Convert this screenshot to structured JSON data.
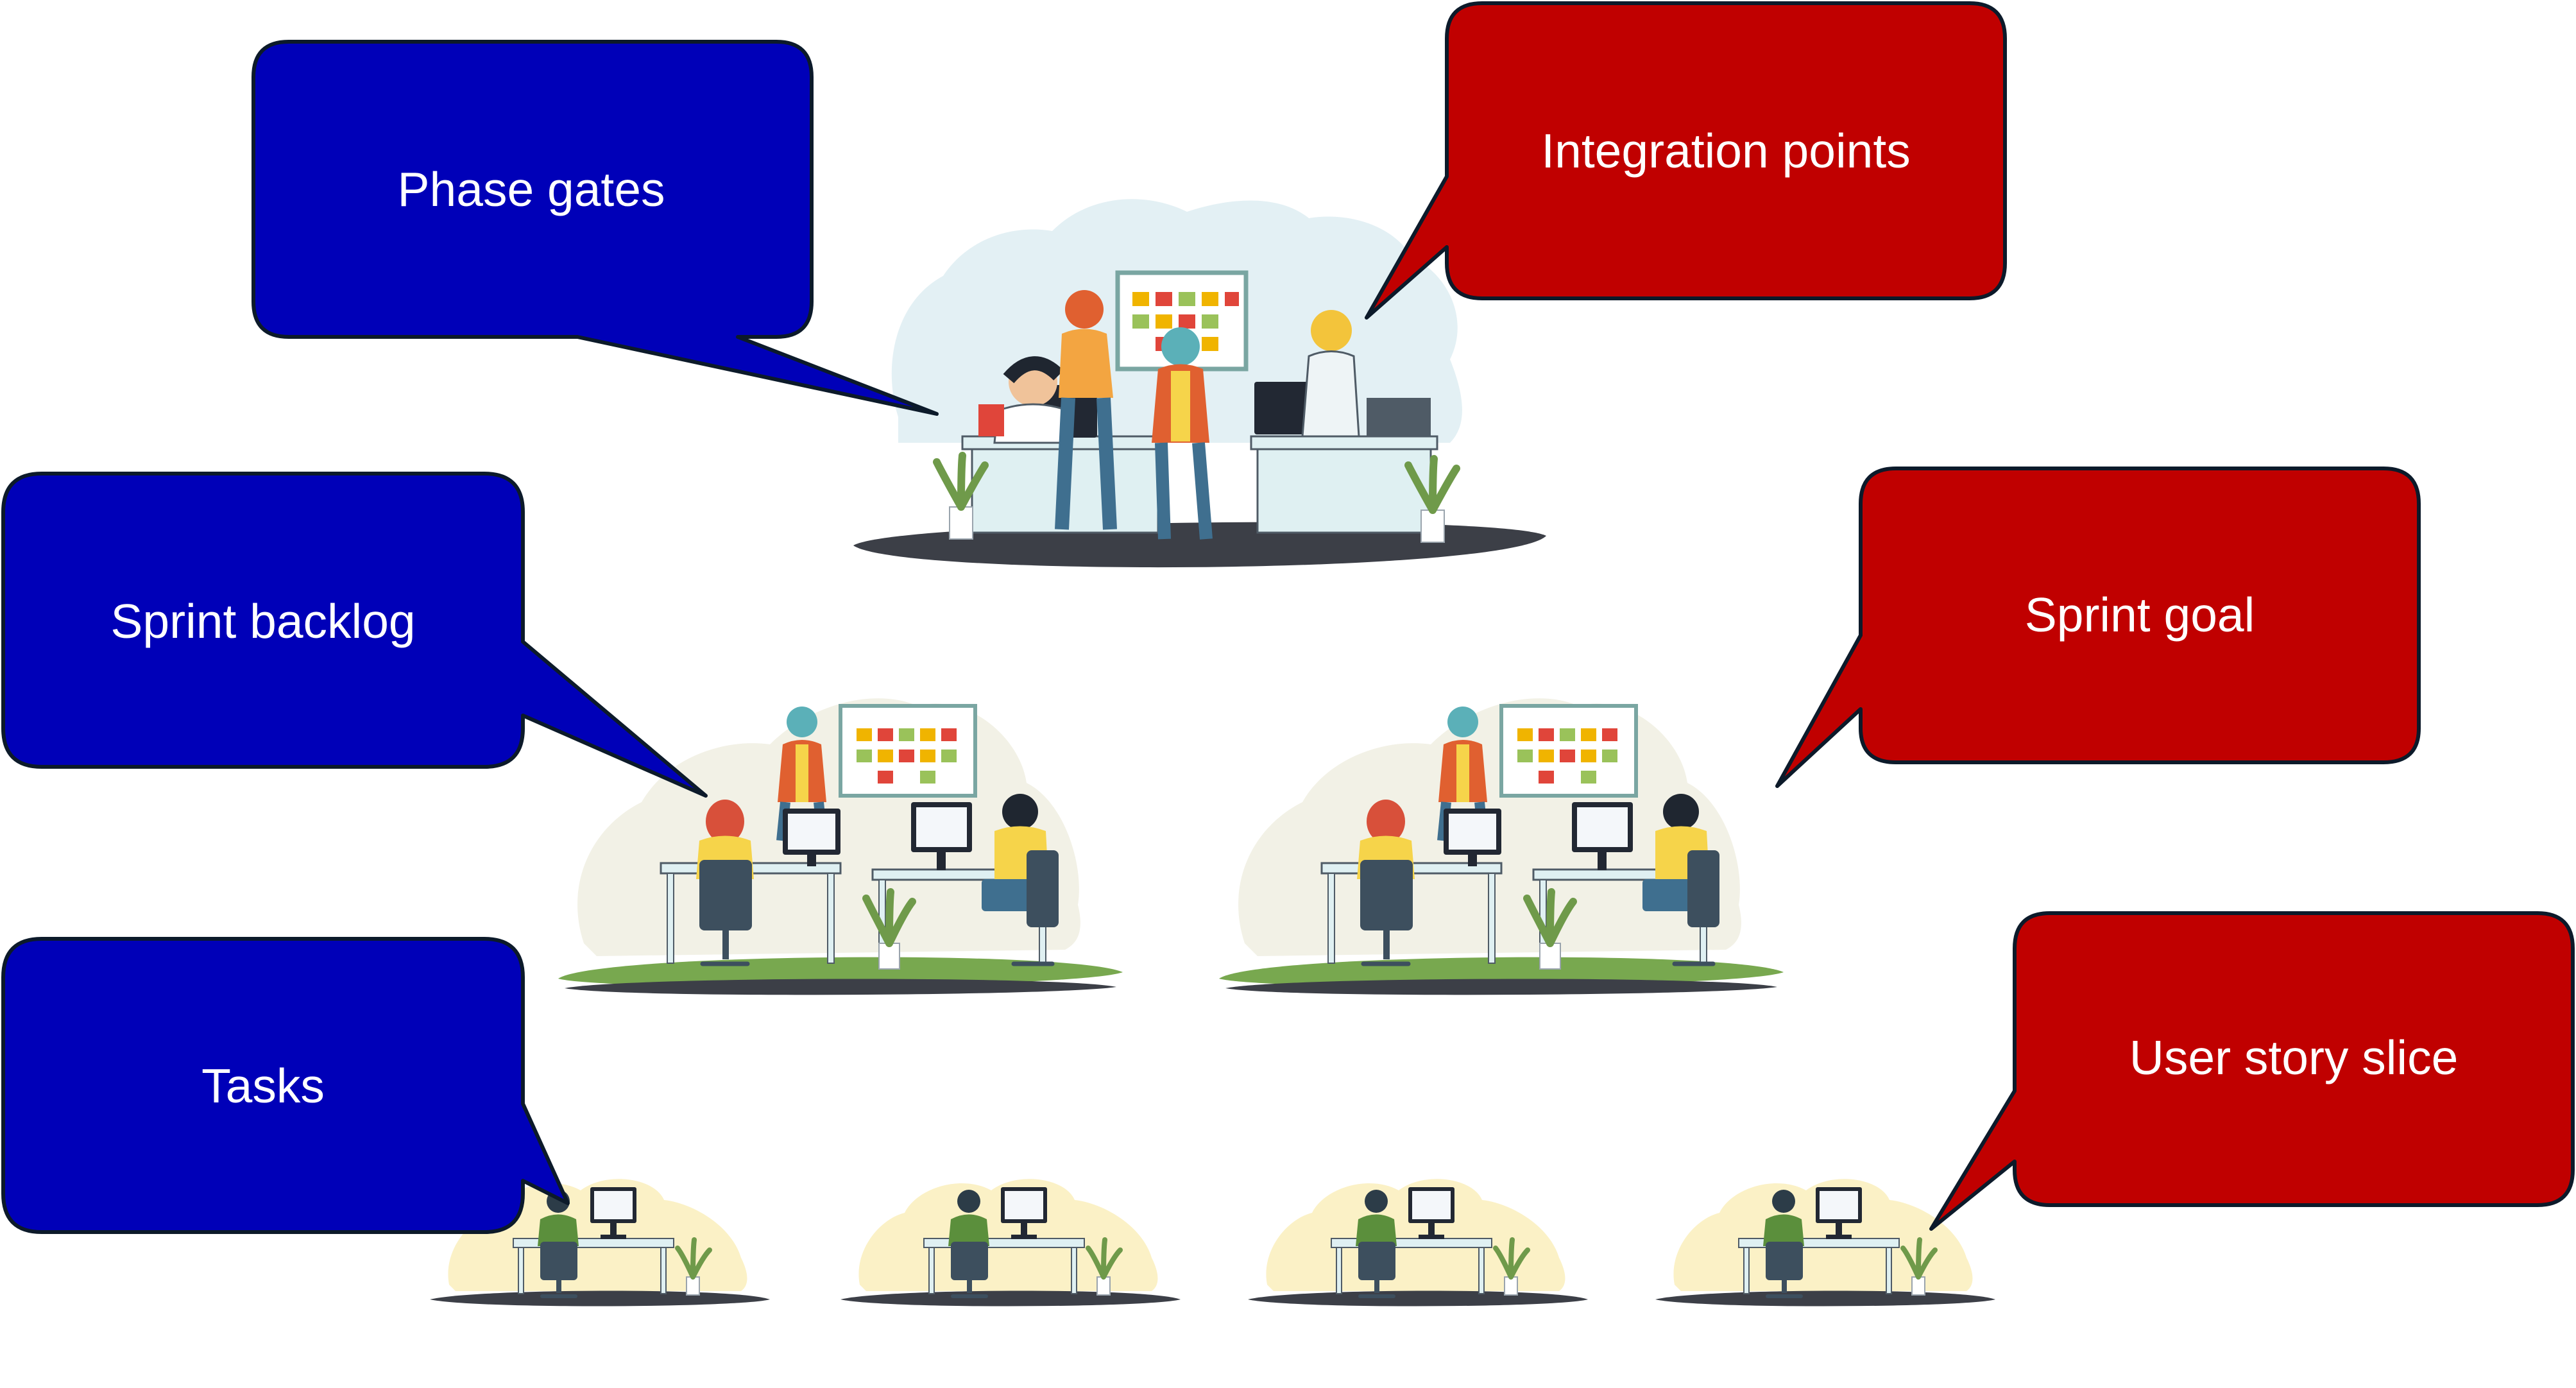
{
  "colors": {
    "blue_bubble": "#0000b8",
    "red_bubble": "#c00000",
    "bubble_outline": "#0c1a2a",
    "bubble_text": "#ffffff",
    "blob_blue": "#e3f0f4",
    "blob_beige": "#f2f1e6",
    "blob_yellow": "#fbf1c6",
    "ground": "#3c3f47",
    "grass": "#78a84f",
    "desk": "#dff0f2",
    "monitor": "#222833",
    "chair": "#3d4f5e",
    "plant": "#6f9a4a"
  },
  "callouts": [
    {
      "id": "phase-gates",
      "label": "Phase gates",
      "color": "blue"
    },
    {
      "id": "integration-points",
      "label": "Integration points",
      "color": "red"
    },
    {
      "id": "sprint-backlog",
      "label": "Sprint backlog",
      "color": "blue"
    },
    {
      "id": "sprint-goal",
      "label": "Sprint goal",
      "color": "red"
    },
    {
      "id": "tasks",
      "label": "Tasks",
      "color": "blue"
    },
    {
      "id": "user-story-slice",
      "label": "User story slice",
      "color": "red"
    }
  ],
  "illustrations": [
    {
      "id": "program-team",
      "icon": "team-meeting-illustration"
    },
    {
      "id": "scrum-team-left",
      "icon": "team-workspace-illustration"
    },
    {
      "id": "scrum-team-right",
      "icon": "team-workspace-illustration"
    },
    {
      "id": "developer-1",
      "icon": "developer-desk-illustration"
    },
    {
      "id": "developer-2",
      "icon": "developer-desk-illustration"
    },
    {
      "id": "developer-3",
      "icon": "developer-desk-illustration"
    },
    {
      "id": "developer-4",
      "icon": "developer-desk-illustration"
    }
  ]
}
